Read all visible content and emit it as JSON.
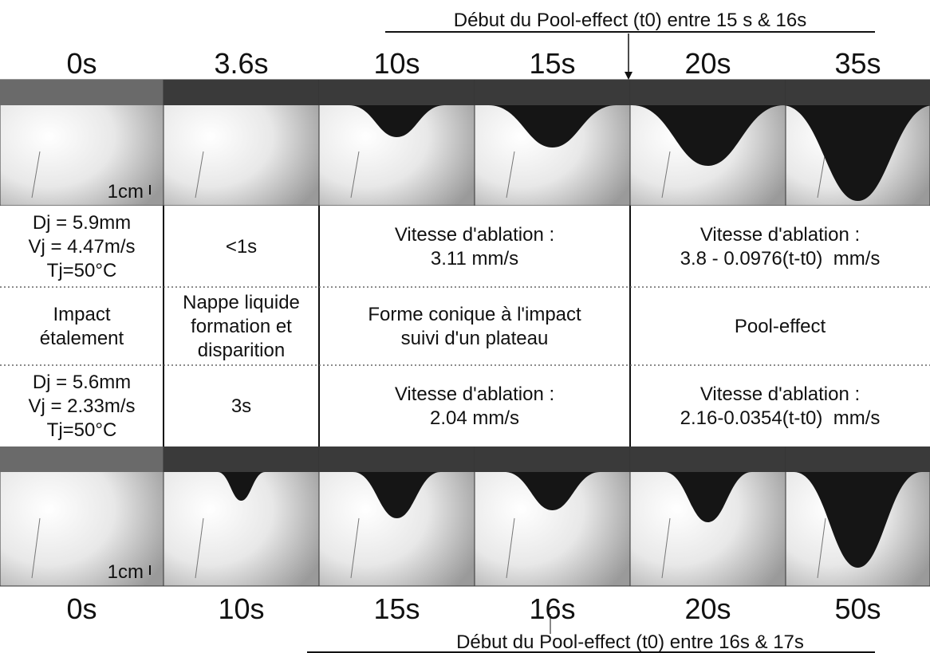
{
  "header": {
    "caption": "Début du Pool-effect (t0) entre 15 s & 16s",
    "times": [
      "0s",
      "3.6s",
      "10s",
      "15s",
      "20s",
      "35s"
    ],
    "scale": "1cm"
  },
  "table": {
    "rows": [
      [
        [
          "Dj = 5.9mm",
          "Vj = 4.47m/s",
          "Tj=50°C"
        ],
        [
          "<1s"
        ],
        [
          "Vitesse d'ablation :",
          "3.11 mm/s"
        ],
        [
          "Vitesse d'ablation :",
          "3.8 - 0.0976(t-t0)  mm/s"
        ]
      ],
      [
        [
          "Impact",
          "étalement"
        ],
        [
          "Nappe liquide",
          "formation et",
          "disparition"
        ],
        [
          "Forme conique à l'impact",
          "suivi d'un plateau"
        ],
        [
          "Pool-effect"
        ]
      ],
      [
        [
          "Dj = 5.6mm",
          "Vj = 2.33m/s",
          "Tj=50°C"
        ],
        [
          "3s"
        ],
        [
          "Vitesse d'ablation :",
          "2.04 mm/s"
        ],
        [
          "Vitesse d'ablation :",
          "2.16-0.0354(t-t0)  mm/s"
        ]
      ]
    ]
  },
  "footer": {
    "times": [
      "0s",
      "10s",
      "15s",
      "16s",
      "20s",
      "50s"
    ],
    "caption": "Début du Pool-effect (t0) entre 16s & 17s",
    "scale": "1cm"
  }
}
